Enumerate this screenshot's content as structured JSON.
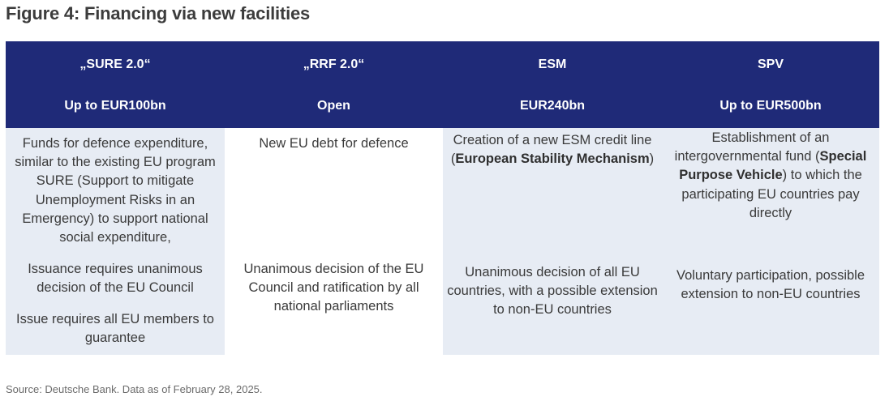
{
  "title": "Figure 4: Financing via new facilities",
  "columns": [
    {
      "name": "„SURE 2.0“",
      "amount": "Up to EUR100bn",
      "description": "Funds for defence expenditure, similar to the existing EU program SURE (Support to mitigate Unemployment Risks in an Emergency) to support national social expenditure,",
      "decision": "Issuance requires unanimous decision of the EU Council",
      "guarantee": "Issue requires all EU members to guarantee"
    },
    {
      "name": "„RRF 2.0“",
      "amount": "Open",
      "description": "New EU debt for defence",
      "decision": "Unanimous decision of the EU Council and ratification by all national parliaments"
    },
    {
      "name": "ESM",
      "amount": "EUR240bn",
      "description_pre": "Creation of a new ESM credit line (",
      "description_bold": "European Stability Mechanism",
      "description_post": ")",
      "decision": "Unanimous decision of all EU countries, with a possible extension to non-EU countries"
    },
    {
      "name": "SPV",
      "amount": "Up to EUR500bn",
      "description_pre": "Establishment of an intergovernmental fund (",
      "description_bold": "Special Purpose Vehicle",
      "description_post": ") to which the participating EU countries pay directly",
      "decision": "Voluntary participation, possible extension to non-EU countries"
    }
  ],
  "source": "Source: Deutsche Bank. Data as of February 28, 2025.",
  "colors": {
    "header_bg": "#1f2a78",
    "header_text": "#ffffff",
    "shaded_cell": "#e7ecf4",
    "body_text": "#3a3a3a"
  }
}
